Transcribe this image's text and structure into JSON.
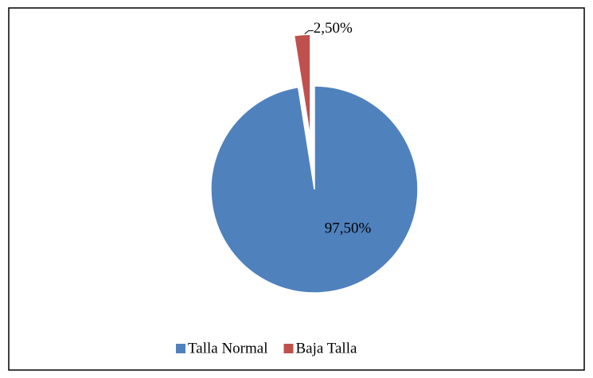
{
  "chart_data": {
    "type": "pie",
    "categories": [
      "Talla Normal",
      "Baja Talla"
    ],
    "values": [
      97.5,
      2.5
    ],
    "value_labels": [
      "97,50%",
      "2,50%"
    ],
    "colors": [
      "#4f81bd",
      "#c0504d"
    ],
    "legend": "bottom"
  }
}
